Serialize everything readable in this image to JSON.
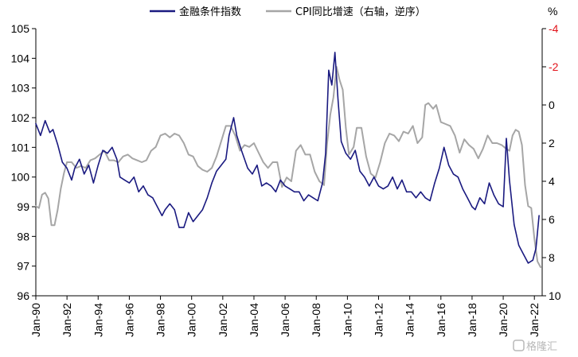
{
  "chart_data": {
    "type": "line",
    "legend": {
      "placement": "top-center",
      "entries": [
        {
          "name": "金融条件指数",
          "color": "#1a1a80"
        },
        {
          "name": "CPI同比增速（右轴，逆序）",
          "color": "#a6a6a6"
        }
      ]
    },
    "left_axis": {
      "ylim": [
        96,
        105
      ],
      "ticks": [
        "96",
        "97",
        "98",
        "99",
        "100",
        "101",
        "102",
        "103",
        "104",
        "105"
      ]
    },
    "right_axis": {
      "unit": "%",
      "inverted": true,
      "ylim": [
        -4,
        10
      ],
      "ticks": [
        {
          "label": "-4",
          "value": -4,
          "color": "#e2141c"
        },
        {
          "label": "-2",
          "value": -2,
          "color": "#e2141c"
        },
        {
          "label": "0",
          "value": 0,
          "color": "#000000"
        },
        {
          "label": "2",
          "value": 2,
          "color": "#000000"
        },
        {
          "label": "4",
          "value": 4,
          "color": "#000000"
        },
        {
          "label": "6",
          "value": 6,
          "color": "#000000"
        },
        {
          "label": "8",
          "value": 8,
          "color": "#000000"
        },
        {
          "label": "10",
          "value": 10,
          "color": "#000000"
        }
      ]
    },
    "x_axis": {
      "range": [
        1990.0,
        2022.5
      ],
      "ticks": [
        {
          "label": "Jan-90",
          "value": 1990
        },
        {
          "label": "Jan-92",
          "value": 1992
        },
        {
          "label": "Jan-94",
          "value": 1994
        },
        {
          "label": "Jan-96",
          "value": 1996
        },
        {
          "label": "Jan-98",
          "value": 1998
        },
        {
          "label": "Jan-00",
          "value": 2000
        },
        {
          "label": "Jan-02",
          "value": 2002
        },
        {
          "label": "Jan-04",
          "value": 2004
        },
        {
          "label": "Jan-06",
          "value": 2006
        },
        {
          "label": "Jan-08",
          "value": 2008
        },
        {
          "label": "Jan-10",
          "value": 2010
        },
        {
          "label": "Jan-12",
          "value": 2012
        },
        {
          "label": "Jan-14",
          "value": 2014
        },
        {
          "label": "Jan-16",
          "value": 2016
        },
        {
          "label": "Jan-18",
          "value": 2018
        },
        {
          "label": "Jan-20",
          "value": 2020
        },
        {
          "label": "Jan-22",
          "value": 2022
        }
      ]
    },
    "series": [
      {
        "name": "金融条件指数",
        "axis": "left",
        "color": "#1a1a80",
        "points": [
          [
            1990.0,
            101.8
          ],
          [
            1990.3,
            101.4
          ],
          [
            1990.6,
            101.9
          ],
          [
            1990.9,
            101.5
          ],
          [
            1991.1,
            101.6
          ],
          [
            1991.4,
            101.1
          ],
          [
            1991.7,
            100.5
          ],
          [
            1992.0,
            100.3
          ],
          [
            1992.3,
            99.9
          ],
          [
            1992.5,
            100.3
          ],
          [
            1992.8,
            100.6
          ],
          [
            1993.1,
            100.1
          ],
          [
            1993.4,
            100.4
          ],
          [
            1993.7,
            99.8
          ],
          [
            1994.0,
            100.4
          ],
          [
            1994.3,
            100.9
          ],
          [
            1994.6,
            100.8
          ],
          [
            1994.9,
            101.0
          ],
          [
            1995.2,
            100.6
          ],
          [
            1995.4,
            100.0
          ],
          [
            1995.7,
            99.9
          ],
          [
            1996.0,
            99.8
          ],
          [
            1996.3,
            100.0
          ],
          [
            1996.6,
            99.5
          ],
          [
            1996.9,
            99.7
          ],
          [
            1997.2,
            99.4
          ],
          [
            1997.5,
            99.3
          ],
          [
            1997.8,
            99.0
          ],
          [
            1998.1,
            98.7
          ],
          [
            1998.3,
            98.9
          ],
          [
            1998.6,
            99.1
          ],
          [
            1998.9,
            98.9
          ],
          [
            1999.2,
            98.3
          ],
          [
            1999.5,
            98.3
          ],
          [
            1999.8,
            98.8
          ],
          [
            2000.1,
            98.5
          ],
          [
            2000.4,
            98.7
          ],
          [
            2000.7,
            98.9
          ],
          [
            2001.0,
            99.3
          ],
          [
            2001.3,
            99.8
          ],
          [
            2001.6,
            100.2
          ],
          [
            2001.9,
            100.4
          ],
          [
            2002.2,
            100.6
          ],
          [
            2002.4,
            101.4
          ],
          [
            2002.7,
            102.0
          ],
          [
            2002.9,
            101.4
          ],
          [
            2003.2,
            100.9
          ],
          [
            2003.6,
            100.3
          ],
          [
            2003.9,
            100.1
          ],
          [
            2004.2,
            100.4
          ],
          [
            2004.5,
            99.7
          ],
          [
            2004.8,
            99.8
          ],
          [
            2005.1,
            99.7
          ],
          [
            2005.4,
            99.5
          ],
          [
            2005.7,
            99.9
          ],
          [
            2006.0,
            99.7
          ],
          [
            2006.3,
            99.6
          ],
          [
            2006.6,
            99.5
          ],
          [
            2006.9,
            99.5
          ],
          [
            2007.2,
            99.2
          ],
          [
            2007.5,
            99.4
          ],
          [
            2007.8,
            99.3
          ],
          [
            2008.1,
            99.2
          ],
          [
            2008.4,
            99.8
          ],
          [
            2008.6,
            100.8
          ],
          [
            2008.8,
            103.6
          ],
          [
            2009.0,
            103.1
          ],
          [
            2009.2,
            104.2
          ],
          [
            2009.4,
            102.6
          ],
          [
            2009.6,
            101.2
          ],
          [
            2009.9,
            100.8
          ],
          [
            2010.2,
            100.6
          ],
          [
            2010.5,
            100.9
          ],
          [
            2010.8,
            100.2
          ],
          [
            2011.1,
            100.0
          ],
          [
            2011.4,
            99.7
          ],
          [
            2011.7,
            100.0
          ],
          [
            2012.0,
            99.7
          ],
          [
            2012.3,
            99.6
          ],
          [
            2012.6,
            99.7
          ],
          [
            2012.9,
            100.0
          ],
          [
            2013.2,
            99.6
          ],
          [
            2013.5,
            99.9
          ],
          [
            2013.8,
            99.5
          ],
          [
            2014.1,
            99.5
          ],
          [
            2014.4,
            99.3
          ],
          [
            2014.7,
            99.5
          ],
          [
            2015.0,
            99.3
          ],
          [
            2015.3,
            99.2
          ],
          [
            2015.6,
            99.8
          ],
          [
            2015.9,
            100.3
          ],
          [
            2016.2,
            101.0
          ],
          [
            2016.5,
            100.4
          ],
          [
            2016.8,
            100.1
          ],
          [
            2017.1,
            100.0
          ],
          [
            2017.4,
            99.6
          ],
          [
            2017.7,
            99.3
          ],
          [
            2018.0,
            99.0
          ],
          [
            2018.2,
            98.9
          ],
          [
            2018.5,
            99.3
          ],
          [
            2018.8,
            99.1
          ],
          [
            2019.1,
            99.8
          ],
          [
            2019.4,
            99.4
          ],
          [
            2019.7,
            99.1
          ],
          [
            2020.0,
            99.0
          ],
          [
            2020.2,
            101.3
          ],
          [
            2020.4,
            99.9
          ],
          [
            2020.7,
            98.4
          ],
          [
            2021.0,
            97.7
          ],
          [
            2021.3,
            97.4
          ],
          [
            2021.6,
            97.1
          ],
          [
            2021.9,
            97.2
          ],
          [
            2022.1,
            97.6
          ],
          [
            2022.3,
            98.7
          ]
        ]
      },
      {
        "name": "CPI同比增速（右轴，逆序）",
        "axis": "right",
        "color": "#a6a6a6",
        "points": [
          [
            1990.0,
            5.3
          ],
          [
            1990.2,
            5.4
          ],
          [
            1990.4,
            4.7
          ],
          [
            1990.6,
            4.6
          ],
          [
            1990.8,
            4.9
          ],
          [
            1991.0,
            6.3
          ],
          [
            1991.2,
            6.3
          ],
          [
            1991.4,
            5.5
          ],
          [
            1991.6,
            4.4
          ],
          [
            1991.8,
            3.6
          ],
          [
            1992.0,
            3.0
          ],
          [
            1992.3,
            3.0
          ],
          [
            1992.6,
            3.3
          ],
          [
            1992.9,
            3.2
          ],
          [
            1993.2,
            3.3
          ],
          [
            1993.5,
            2.9
          ],
          [
            1993.8,
            2.8
          ],
          [
            1994.1,
            2.6
          ],
          [
            1994.4,
            2.4
          ],
          [
            1994.7,
            2.9
          ],
          [
            1995.0,
            2.9
          ],
          [
            1995.3,
            3.0
          ],
          [
            1995.6,
            2.7
          ],
          [
            1995.9,
            2.6
          ],
          [
            1996.2,
            2.8
          ],
          [
            1996.5,
            2.9
          ],
          [
            1996.8,
            3.0
          ],
          [
            1997.1,
            2.9
          ],
          [
            1997.4,
            2.4
          ],
          [
            1997.7,
            2.2
          ],
          [
            1998.0,
            1.6
          ],
          [
            1998.3,
            1.5
          ],
          [
            1998.6,
            1.7
          ],
          [
            1998.9,
            1.5
          ],
          [
            1999.2,
            1.6
          ],
          [
            1999.5,
            2.0
          ],
          [
            1999.8,
            2.6
          ],
          [
            2000.1,
            2.7
          ],
          [
            2000.4,
            3.2
          ],
          [
            2000.7,
            3.4
          ],
          [
            2001.0,
            3.5
          ],
          [
            2001.3,
            3.3
          ],
          [
            2001.6,
            2.7
          ],
          [
            2001.9,
            1.9
          ],
          [
            2002.2,
            1.1
          ],
          [
            2002.5,
            1.1
          ],
          [
            2002.8,
            1.6
          ],
          [
            2003.1,
            2.4
          ],
          [
            2003.4,
            2.1
          ],
          [
            2003.7,
            2.2
          ],
          [
            2004.0,
            2.0
          ],
          [
            2004.3,
            2.5
          ],
          [
            2004.6,
            3.0
          ],
          [
            2004.9,
            3.3
          ],
          [
            2005.2,
            3.0
          ],
          [
            2005.5,
            3.0
          ],
          [
            2005.8,
            4.3
          ],
          [
            2006.1,
            3.8
          ],
          [
            2006.4,
            4.0
          ],
          [
            2006.7,
            2.4
          ],
          [
            2007.0,
            2.1
          ],
          [
            2007.3,
            2.6
          ],
          [
            2007.6,
            2.6
          ],
          [
            2007.9,
            3.5
          ],
          [
            2008.2,
            4.0
          ],
          [
            2008.5,
            4.2
          ],
          [
            2008.7,
            2.0
          ],
          [
            2008.9,
            0.5
          ],
          [
            2009.1,
            -0.4
          ],
          [
            2009.3,
            -2.0
          ],
          [
            2009.5,
            -1.3
          ],
          [
            2009.7,
            -0.8
          ],
          [
            2009.9,
            1.2
          ],
          [
            2010.1,
            2.6
          ],
          [
            2010.4,
            2.2
          ],
          [
            2010.6,
            1.2
          ],
          [
            2010.9,
            1.2
          ],
          [
            2011.2,
            2.7
          ],
          [
            2011.5,
            3.6
          ],
          [
            2011.8,
            3.8
          ],
          [
            2012.1,
            3.0
          ],
          [
            2012.4,
            2.0
          ],
          [
            2012.7,
            1.5
          ],
          [
            2013.0,
            1.6
          ],
          [
            2013.3,
            1.9
          ],
          [
            2013.6,
            1.4
          ],
          [
            2013.9,
            1.5
          ],
          [
            2014.2,
            1.1
          ],
          [
            2014.5,
            2.0
          ],
          [
            2014.8,
            1.7
          ],
          [
            2015.0,
            0.0
          ],
          [
            2015.2,
            -0.1
          ],
          [
            2015.5,
            0.2
          ],
          [
            2015.7,
            0.0
          ],
          [
            2016.0,
            0.9
          ],
          [
            2016.3,
            1.0
          ],
          [
            2016.6,
            1.1
          ],
          [
            2016.9,
            1.6
          ],
          [
            2017.2,
            2.5
          ],
          [
            2017.5,
            1.8
          ],
          [
            2017.8,
            2.1
          ],
          [
            2018.1,
            2.3
          ],
          [
            2018.4,
            2.8
          ],
          [
            2018.7,
            2.3
          ],
          [
            2019.0,
            1.6
          ],
          [
            2019.3,
            2.0
          ],
          [
            2019.6,
            2.0
          ],
          [
            2019.9,
            2.1
          ],
          [
            2020.2,
            2.3
          ],
          [
            2020.4,
            2.4
          ],
          [
            2020.6,
            1.6
          ],
          [
            2020.8,
            1.3
          ],
          [
            2021.0,
            1.4
          ],
          [
            2021.2,
            2.1
          ],
          [
            2021.4,
            4.2
          ],
          [
            2021.6,
            5.3
          ],
          [
            2021.8,
            5.4
          ],
          [
            2022.0,
            7.0
          ],
          [
            2022.2,
            8.2
          ],
          [
            2022.4,
            8.5
          ]
        ]
      }
    ]
  },
  "watermark": {
    "label": "格隆汇"
  }
}
